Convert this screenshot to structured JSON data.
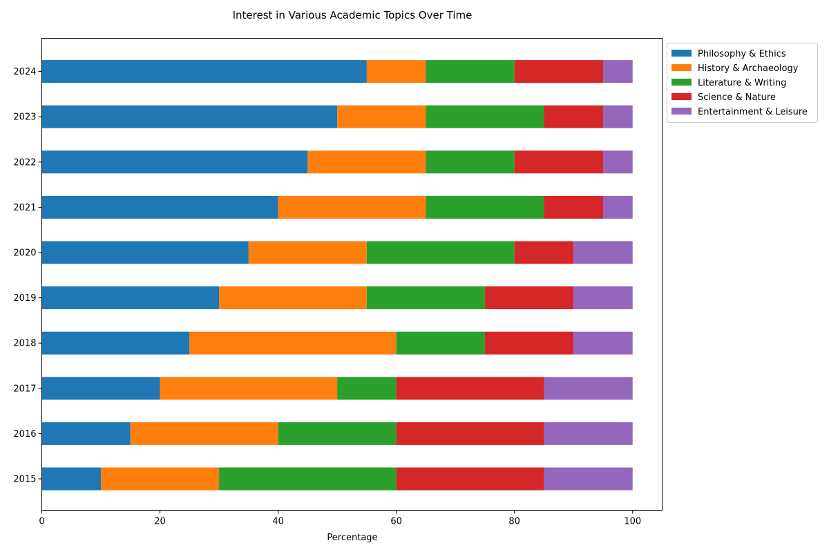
{
  "chart_data": {
    "type": "bar",
    "orientation": "horizontal",
    "stacked": true,
    "title": "Interest in Various Academic Topics Over Time",
    "xlabel": "Percentage",
    "ylabel": "",
    "xlim": [
      0,
      105
    ],
    "xticks": [
      0,
      20,
      40,
      60,
      80,
      100
    ],
    "categories": [
      "2015",
      "2016",
      "2017",
      "2018",
      "2019",
      "2020",
      "2021",
      "2022",
      "2023",
      "2024"
    ],
    "grid": false,
    "legend_position": "outside-top-right",
    "series": [
      {
        "name": "Philosophy & Ethics",
        "color": "#1f77b4",
        "values": [
          10,
          15,
          20,
          25,
          30,
          35,
          40,
          45,
          50,
          55
        ]
      },
      {
        "name": "History & Archaeology",
        "color": "#ff7f0e",
        "values": [
          20,
          25,
          30,
          35,
          25,
          20,
          25,
          20,
          15,
          10
        ]
      },
      {
        "name": "Literature & Writing",
        "color": "#2ca02c",
        "values": [
          30,
          20,
          10,
          15,
          20,
          25,
          20,
          15,
          20,
          15
        ]
      },
      {
        "name": "Science & Nature",
        "color": "#d62728",
        "values": [
          25,
          25,
          25,
          15,
          15,
          10,
          10,
          15,
          10,
          15
        ]
      },
      {
        "name": "Entertainment & Leisure",
        "color": "#9467bd",
        "values": [
          15,
          15,
          15,
          10,
          10,
          10,
          5,
          5,
          5,
          5
        ]
      }
    ]
  }
}
